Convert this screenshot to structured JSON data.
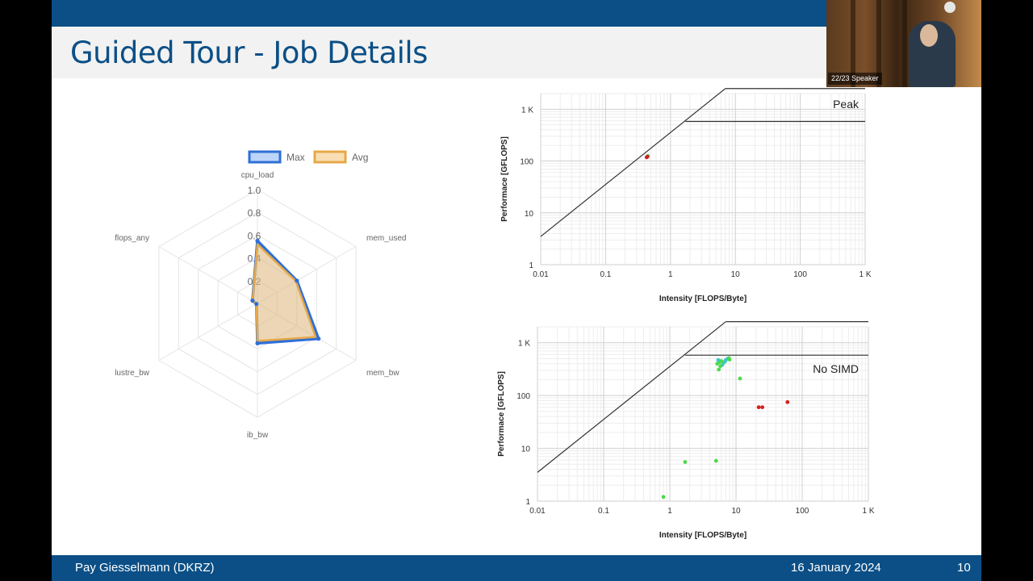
{
  "slide": {
    "title": "Guided Tour - Job Details",
    "footer_author": "Pay Giesselmann  (DKRZ)",
    "footer_date": "16 January 2024",
    "page_number": "10"
  },
  "speaker_video": {
    "label": "22/23 Speaker"
  },
  "colors": {
    "header": "#0b4f86",
    "radar_max": "#2f6fd6",
    "radar_avg": "#e6a949",
    "roof": "#333333",
    "point_green": "#4cd94c",
    "point_red": "#d42020",
    "point_cyan": "#3ac6c8"
  },
  "chart_data": [
    {
      "type": "radar",
      "legend": [
        "Max",
        "Avg"
      ],
      "axes": [
        "cpu_load",
        "mem_used",
        "mem_bw",
        "ib_bw",
        "lustre_bw",
        "flops_any"
      ],
      "ticks": [
        "0.2",
        "0.4",
        "0.6",
        "0.8",
        "1.0"
      ],
      "range": [
        0,
        1
      ],
      "series": [
        {
          "name": "Max",
          "values": [
            0.55,
            0.4,
            0.62,
            0.35,
            0.01,
            0.05
          ]
        },
        {
          "name": "Avg",
          "values": [
            0.52,
            0.39,
            0.59,
            0.33,
            0.01,
            0.05
          ]
        }
      ]
    },
    {
      "type": "scatter",
      "subtype": "roofline",
      "xlabel": "Intensity [FLOPS/Byte]",
      "ylabel": "Performace [GFLOPS]",
      "xscale": "log",
      "yscale": "log",
      "xlim": [
        0.01,
        1000
      ],
      "ylim": [
        1,
        2000
      ],
      "xticks": [
        "0.01",
        "0.1",
        "1",
        "10",
        "100",
        "1 K"
      ],
      "yticks": [
        "1",
        "10",
        "100",
        "1 K"
      ],
      "annotation": "Peak",
      "roofs": [
        {
          "kind": "bandwidth",
          "x": [
            0.01,
            7
          ],
          "y": [
            3.5,
            2500
          ]
        },
        {
          "kind": "peak",
          "x": [
            7,
            1000
          ],
          "y": [
            2500,
            2500
          ]
        },
        {
          "kind": "no_simd",
          "x": [
            1.7,
            1000
          ],
          "y": [
            580,
            580
          ]
        }
      ],
      "points": [
        {
          "x": 0.43,
          "y": 118,
          "color": "red"
        },
        {
          "x": 0.45,
          "y": 125,
          "color": "green"
        },
        {
          "x": 0.44,
          "y": 121,
          "color": "red"
        }
      ]
    },
    {
      "type": "scatter",
      "subtype": "roofline",
      "xlabel": "Intensity [FLOPS/Byte]",
      "ylabel": "Performace [GFLOPS]",
      "xscale": "log",
      "yscale": "log",
      "xlim": [
        0.01,
        1000
      ],
      "ylim": [
        1,
        2000
      ],
      "xticks": [
        "0.01",
        "0.1",
        "1",
        "10",
        "100",
        "1 K"
      ],
      "yticks": [
        "1",
        "10",
        "100",
        "1 K"
      ],
      "annotation": "No SIMD",
      "roofs": [
        {
          "kind": "bandwidth",
          "x": [
            0.01,
            7
          ],
          "y": [
            3.5,
            2500
          ]
        },
        {
          "kind": "peak",
          "x": [
            7,
            1000
          ],
          "y": [
            2500,
            2500
          ]
        },
        {
          "kind": "no_simd",
          "x": [
            1.7,
            1000
          ],
          "y": [
            580,
            580
          ]
        }
      ],
      "points": [
        {
          "x": 0.8,
          "y": 1.2,
          "color": "green"
        },
        {
          "x": 1.7,
          "y": 5.5,
          "color": "green"
        },
        {
          "x": 5.0,
          "y": 5.8,
          "color": "green"
        },
        {
          "x": 11.5,
          "y": 210,
          "color": "green"
        },
        {
          "x": 5.5,
          "y": 310,
          "color": "green"
        },
        {
          "x": 5.2,
          "y": 400,
          "color": "green"
        },
        {
          "x": 5.6,
          "y": 430,
          "color": "green"
        },
        {
          "x": 6.0,
          "y": 450,
          "color": "green"
        },
        {
          "x": 6.5,
          "y": 420,
          "color": "green"
        },
        {
          "x": 7.0,
          "y": 470,
          "color": "cyan"
        },
        {
          "x": 7.5,
          "y": 500,
          "color": "cyan"
        },
        {
          "x": 8.0,
          "y": 480,
          "color": "green"
        },
        {
          "x": 6.2,
          "y": 380,
          "color": "cyan"
        },
        {
          "x": 5.8,
          "y": 360,
          "color": "green"
        },
        {
          "x": 6.8,
          "y": 440,
          "color": "cyan"
        },
        {
          "x": 7.8,
          "y": 510,
          "color": "green"
        },
        {
          "x": 5.4,
          "y": 470,
          "color": "cyan"
        },
        {
          "x": 22,
          "y": 60,
          "color": "red"
        },
        {
          "x": 25,
          "y": 60,
          "color": "red"
        },
        {
          "x": 60,
          "y": 75,
          "color": "red"
        }
      ]
    }
  ]
}
